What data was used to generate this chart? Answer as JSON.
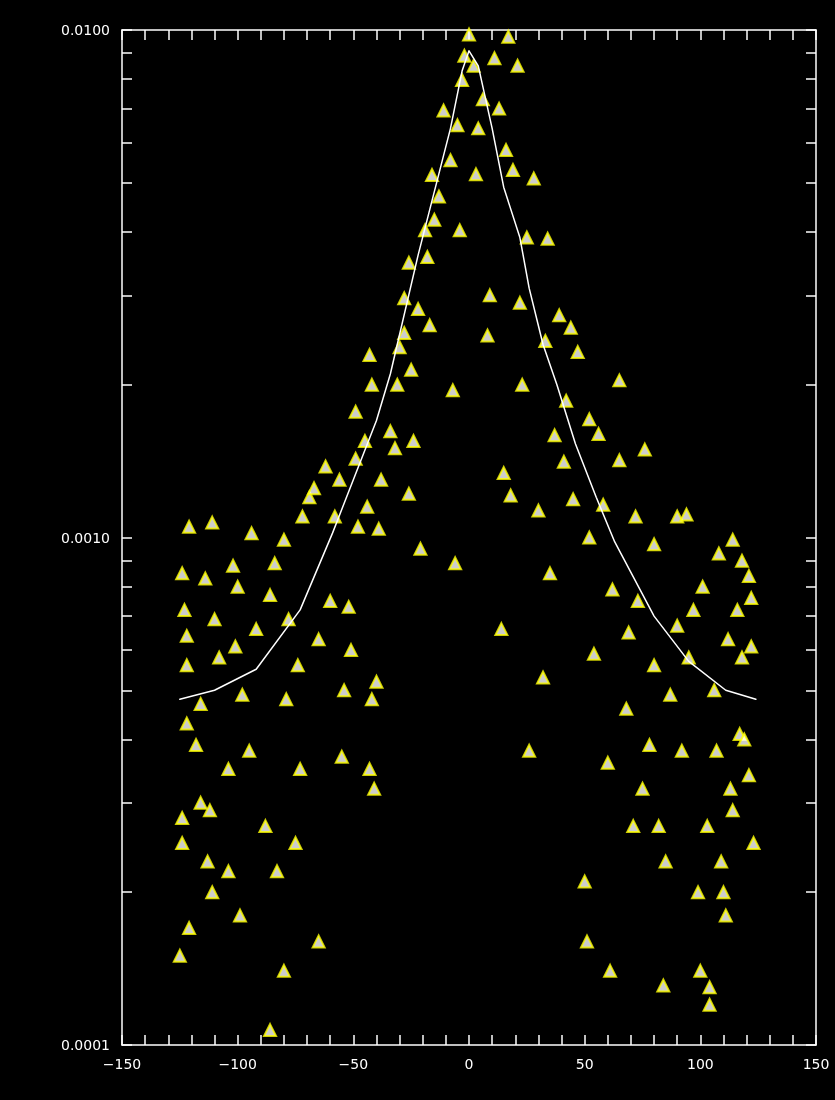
{
  "chart_data": {
    "type": "scatter",
    "log": "y",
    "marker": "triangle",
    "grid": false,
    "xlim": [
      -150,
      150
    ],
    "xticks": [
      -150,
      {
        "value": -140,
        "label": null
      },
      {
        "value": -130,
        "label": null
      },
      {
        "value": -120,
        "label": null
      },
      {
        "value": -110,
        "label": null
      },
      -100,
      {
        "value": -90,
        "label": null
      },
      {
        "value": -80,
        "label": null
      },
      {
        "value": -70,
        "label": null
      },
      {
        "value": -60,
        "label": null
      },
      -50,
      {
        "value": -40,
        "label": null
      },
      {
        "value": -30,
        "label": null
      },
      {
        "value": -20,
        "label": null
      },
      {
        "value": -10,
        "label": null
      },
      0,
      {
        "value": 10,
        "label": null
      },
      {
        "value": 20,
        "label": null
      },
      {
        "value": 30,
        "label": null
      },
      {
        "value": 40,
        "label": null
      },
      50,
      {
        "value": 60,
        "label": null
      },
      {
        "value": 70,
        "label": null
      },
      {
        "value": 80,
        "label": null
      },
      {
        "value": 90,
        "label": null
      },
      100,
      {
        "value": 110,
        "label": null
      },
      {
        "value": 120,
        "label": null
      },
      {
        "value": 130,
        "label": null
      },
      {
        "value": 140,
        "label": null
      },
      150
    ],
    "ylim": [
      0.0001,
      0.01
    ],
    "yticks": [
      {
        "value": 0.0001,
        "label": "0.0001"
      },
      {
        "value": 0.0002,
        "label": null
      },
      {
        "value": 0.0003,
        "label": null
      },
      {
        "value": 0.0004,
        "label": null
      },
      {
        "value": 0.0005,
        "label": null
      },
      {
        "value": 0.0006,
        "label": null
      },
      {
        "value": 0.0007,
        "label": null
      },
      {
        "value": 0.0008,
        "label": null
      },
      {
        "value": 0.0009,
        "label": null
      },
      {
        "value": 0.001,
        "label": "0.0010"
      },
      {
        "value": 0.002,
        "label": null
      },
      {
        "value": 0.003,
        "label": null
      },
      {
        "value": 0.004,
        "label": null
      },
      {
        "value": 0.005,
        "label": null
      },
      {
        "value": 0.006,
        "label": null
      },
      {
        "value": 0.007,
        "label": null
      },
      {
        "value": 0.008,
        "label": null
      },
      {
        "value": 0.009,
        "label": null
      },
      {
        "value": 0.01,
        "label": "0.0100"
      }
    ],
    "series": [
      {
        "color": "#ffff00",
        "x": [
          -125,
          -124,
          -124,
          -124,
          -123,
          -122,
          -121,
          -122,
          -122,
          -121,
          -118,
          -116,
          -114,
          -113,
          -111,
          -111,
          -112,
          -116,
          -110,
          -108,
          -104,
          -104,
          -102,
          -101,
          -99,
          -100,
          -98,
          -95,
          -94,
          -92,
          -88,
          -86,
          -86,
          -84,
          -83,
          -80,
          -80,
          -79,
          -78,
          -75,
          -73,
          -74,
          -72,
          -69,
          -67,
          -65,
          -65,
          -62,
          -60,
          -58,
          -56,
          -55,
          -54,
          -52,
          -51,
          -49,
          -49,
          -48,
          -45,
          -44,
          -43,
          -42,
          -41,
          -40,
          -43,
          -42,
          -39,
          -38,
          -34,
          -32,
          -31,
          -30,
          -28,
          -28,
          -26,
          -26,
          -25,
          -24,
          -22,
          -21,
          -19,
          -18,
          -17,
          -16,
          -15,
          -13,
          -11,
          -8,
          -7,
          -6,
          -5,
          -4,
          -3,
          -2,
          0,
          2,
          3,
          4,
          6,
          8,
          9,
          11,
          13,
          14,
          15,
          16,
          17,
          18,
          19,
          21,
          22,
          23,
          25,
          26,
          28,
          30,
          32,
          33,
          34,
          35,
          37,
          39,
          41,
          42,
          44,
          45,
          47,
          50,
          51,
          52,
          52,
          54,
          56,
          58,
          60,
          61,
          62,
          65,
          65,
          68,
          69,
          71,
          72,
          73,
          75,
          76,
          78,
          80,
          80,
          82,
          84,
          85,
          87,
          90,
          90,
          92,
          94,
          95,
          97,
          99,
          100,
          101,
          103,
          104,
          104,
          106,
          107,
          108,
          109,
          110,
          111,
          112,
          113,
          114,
          116,
          117,
          118,
          119,
          121,
          121,
          122,
          123,
          122,
          114,
          118
        ],
        "values": [
          0.00015,
          0.00025,
          0.00028,
          0.00085,
          0.00072,
          0.00064,
          0.00105,
          0.00056,
          0.00043,
          0.00017,
          0.00039,
          0.0003,
          0.00083,
          0.00023,
          0.00107,
          0.0002,
          0.00029,
          0.00047,
          0.00069,
          0.00058,
          0.00022,
          0.00035,
          0.00088,
          0.00061,
          0.00018,
          0.0008,
          0.00049,
          0.00038,
          0.00102,
          0.00066,
          0.00027,
          0.000107,
          0.00077,
          0.00089,
          0.00022,
          0.00014,
          0.00099,
          0.00048,
          0.00069,
          0.00025,
          0.00035,
          0.00056,
          0.0011,
          0.0012,
          0.00125,
          0.00016,
          0.00063,
          0.00138,
          0.00075,
          0.0011,
          0.0013,
          0.00037,
          0.0005,
          0.00073,
          0.0006,
          0.00143,
          0.00177,
          0.00105,
          0.00155,
          0.00115,
          0.00035,
          0.00048,
          0.00032,
          0.00052,
          0.00229,
          0.002,
          0.00104,
          0.0013,
          0.00162,
          0.0015,
          0.002,
          0.00237,
          0.00253,
          0.00296,
          0.00122,
          0.00348,
          0.00214,
          0.00155,
          0.00282,
          0.00095,
          0.00403,
          0.00357,
          0.00262,
          0.00518,
          0.00423,
          0.0047,
          0.00694,
          0.00554,
          0.00195,
          0.00089,
          0.00649,
          0.00403,
          0.00797,
          0.0089,
          0.0098,
          0.0085,
          0.0052,
          0.0064,
          0.0073,
          0.0025,
          0.003,
          0.0088,
          0.007,
          0.00066,
          0.00134,
          0.0058,
          0.0097,
          0.00121,
          0.0053,
          0.0085,
          0.0029,
          0.002,
          0.0039,
          0.00038,
          0.0051,
          0.00113,
          0.00053,
          0.00244,
          0.00388,
          0.00085,
          0.00159,
          0.00274,
          0.00141,
          0.00186,
          0.00259,
          0.00119,
          0.00232,
          0.00021,
          0.00016,
          0.001,
          0.00171,
          0.00059,
          0.0016,
          0.00116,
          0.00036,
          0.00014,
          0.00079,
          0.00204,
          0.00142,
          0.00046,
          0.00065,
          0.00027,
          0.0011,
          0.00075,
          0.00032,
          0.00149,
          0.00039,
          0.00097,
          0.00056,
          0.00027,
          0.000131,
          0.00023,
          0.00049,
          0.0011,
          0.00067,
          0.00038,
          0.00111,
          0.00058,
          0.00072,
          0.0002,
          0.00014,
          0.0008,
          0.00027,
          0.00013,
          0.00012,
          0.0005,
          0.00038,
          0.00093,
          0.00023,
          0.0002,
          0.00018,
          0.00063,
          0.00032,
          0.00029,
          0.00072,
          0.00041,
          0.00058,
          0.0004,
          0.00034,
          0.00084,
          0.00076,
          0.00025,
          0.00061,
          0.00099,
          0.0009
        ]
      },
      {
        "type": "line",
        "color": "#ffffff",
        "marker": "none",
        "line_style": "solid",
        "x": [
          -125,
          -110,
          -92,
          -73,
          -59,
          -50,
          -40,
          -34,
          -22,
          -8,
          -3,
          0,
          4,
          10,
          15,
          22,
          26,
          32,
          38,
          46,
          55,
          63,
          80,
          95,
          111,
          124
        ],
        "values": [
          0.00048,
          0.0005,
          0.00055,
          0.00072,
          0.00102,
          0.0013,
          0.0017,
          0.0021,
          0.0036,
          0.0064,
          0.0083,
          0.0091,
          0.0085,
          0.0064,
          0.0049,
          0.0039,
          0.0031,
          0.0024,
          0.002,
          0.00153,
          0.0012,
          0.00098,
          0.0007,
          0.00057,
          0.0005,
          0.00048
        ]
      }
    ]
  }
}
